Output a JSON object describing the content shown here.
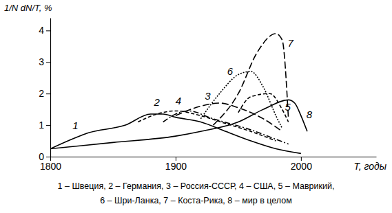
{
  "chart_data": {
    "type": "line",
    "y_label": "1/N dN/T, %",
    "x_label": "T, годы",
    "caption": [
      "1 – Швеция, 2 – Германия, 3 – Россия-СССР, 4 – США, 5 – Маврикий,",
      "6 – Шри-Ланка, 7 – Коста-Рика, 8 – мир в целом"
    ],
    "xlim": [
      1800,
      2060
    ],
    "xticks": [
      1800,
      1900,
      2000
    ],
    "ylim": [
      0,
      4.4
    ],
    "yticks": [
      0,
      1,
      2,
      3,
      4
    ],
    "grid": false,
    "color": "#000000",
    "series": [
      {
        "name": "1",
        "line_style": "solid",
        "x": [
          1800,
          1820,
          1830,
          1860,
          1880,
          1890,
          1900,
          1920,
          1940,
          1960,
          1980,
          2000
        ],
        "values": [
          0.25,
          0.6,
          0.75,
          1.0,
          1.35,
          1.35,
          1.25,
          1.1,
          0.8,
          0.5,
          0.25,
          0.1
        ]
      },
      {
        "name": "2",
        "line_style": "dashed",
        "x": [
          1870,
          1885,
          1900,
          1920,
          1940,
          1960,
          1980
        ],
        "values": [
          1.1,
          1.35,
          1.45,
          1.3,
          1.05,
          0.8,
          0.5
        ]
      },
      {
        "name": "3",
        "line_style": "longdash",
        "x": [
          1900,
          1920,
          1935,
          1950,
          1970,
          1985
        ],
        "values": [
          1.3,
          1.6,
          1.7,
          1.55,
          1.2,
          0.8
        ]
      },
      {
        "name": "4",
        "line_style": "dashdot",
        "x": [
          1890,
          1900,
          1910,
          1930,
          1960,
          1980,
          1990
        ],
        "values": [
          1.1,
          1.35,
          1.45,
          1.2,
          0.85,
          0.55,
          0.4
        ]
      },
      {
        "name": "5",
        "line_style": "dashed",
        "x": [
          1950,
          1960,
          1975,
          1985,
          1990
        ],
        "values": [
          1.4,
          1.9,
          2.0,
          1.5,
          1.1
        ]
      },
      {
        "name": "6",
        "line_style": "dotted",
        "x": [
          1920,
          1935,
          1950,
          1960,
          1970,
          1980,
          1985
        ],
        "values": [
          1.2,
          2.0,
          2.6,
          2.7,
          2.2,
          1.3,
          0.9
        ]
      },
      {
        "name": "7",
        "line_style": "longdash",
        "x": [
          1930,
          1950,
          1965,
          1980,
          1985,
          1990
        ],
        "values": [
          1.0,
          2.0,
          3.3,
          3.9,
          3.7,
          1.2
        ]
      },
      {
        "name": "8",
        "line_style": "solid",
        "x": [
          1800,
          1850,
          1900,
          1920,
          1950,
          1970,
          1990,
          1995,
          2000,
          2005
        ],
        "values": [
          0.25,
          0.45,
          0.65,
          0.8,
          1.1,
          1.5,
          1.8,
          1.7,
          1.3,
          0.8
        ]
      }
    ]
  }
}
